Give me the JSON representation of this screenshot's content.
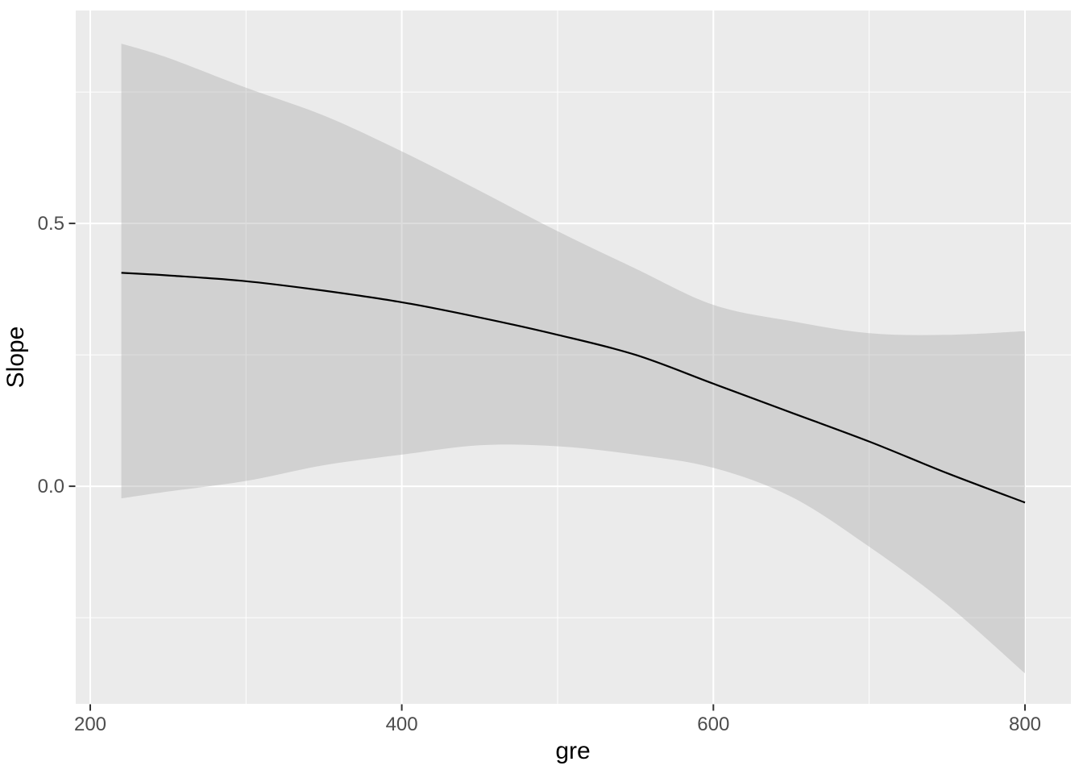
{
  "figure": {
    "background": "#FFFFFF",
    "panel_background": "#EBEBEB",
    "grid_color": "#FFFFFF",
    "ribbon_color": "rgba(170,170,170,0.40)",
    "line_color": "#000000",
    "tick_label_color": "#4D4D4D",
    "axis_title_color": "#000000",
    "tick_mark_color": "#333333"
  },
  "chart_data": {
    "type": "line",
    "title": "",
    "xlabel": "gre",
    "ylabel": "Slope",
    "legend_position": "none",
    "grid": true,
    "x_domain": [
      190.7,
      829.5
    ],
    "y_domain": [
      -0.414,
      0.905
    ],
    "x_major_ticks": [
      {
        "value": 200,
        "label": "200"
      },
      {
        "value": 400,
        "label": "400"
      },
      {
        "value": 600,
        "label": "600"
      },
      {
        "value": 800,
        "label": "800"
      }
    ],
    "x_minor_ticks": [
      300,
      500,
      700
    ],
    "y_major_ticks": [
      {
        "value": 0.0,
        "label": "0.0"
      },
      {
        "value": 0.5,
        "label": "0.5"
      }
    ],
    "y_minor_ticks": [
      -0.25,
      0.25,
      0.75
    ],
    "x": [
      220,
      250,
      300,
      350,
      400,
      450,
      500,
      550,
      600,
      650,
      700,
      750,
      800
    ],
    "series": [
      {
        "name": "slope_estimate",
        "values": [
          0.406,
          0.401,
          0.39,
          0.372,
          0.35,
          0.321,
          0.288,
          0.25,
          0.195,
          0.14,
          0.085,
          0.025,
          -0.031
        ]
      },
      {
        "name": "ci_upper",
        "values": [
          0.842,
          0.815,
          0.758,
          0.705,
          0.637,
          0.562,
          0.485,
          0.414,
          0.345,
          0.314,
          0.291,
          0.288,
          0.295
        ]
      },
      {
        "name": "ci_lower",
        "values": [
          -0.023,
          -0.01,
          0.01,
          0.04,
          0.06,
          0.078,
          0.076,
          0.06,
          0.035,
          -0.02,
          -0.115,
          -0.225,
          -0.356
        ]
      }
    ]
  }
}
